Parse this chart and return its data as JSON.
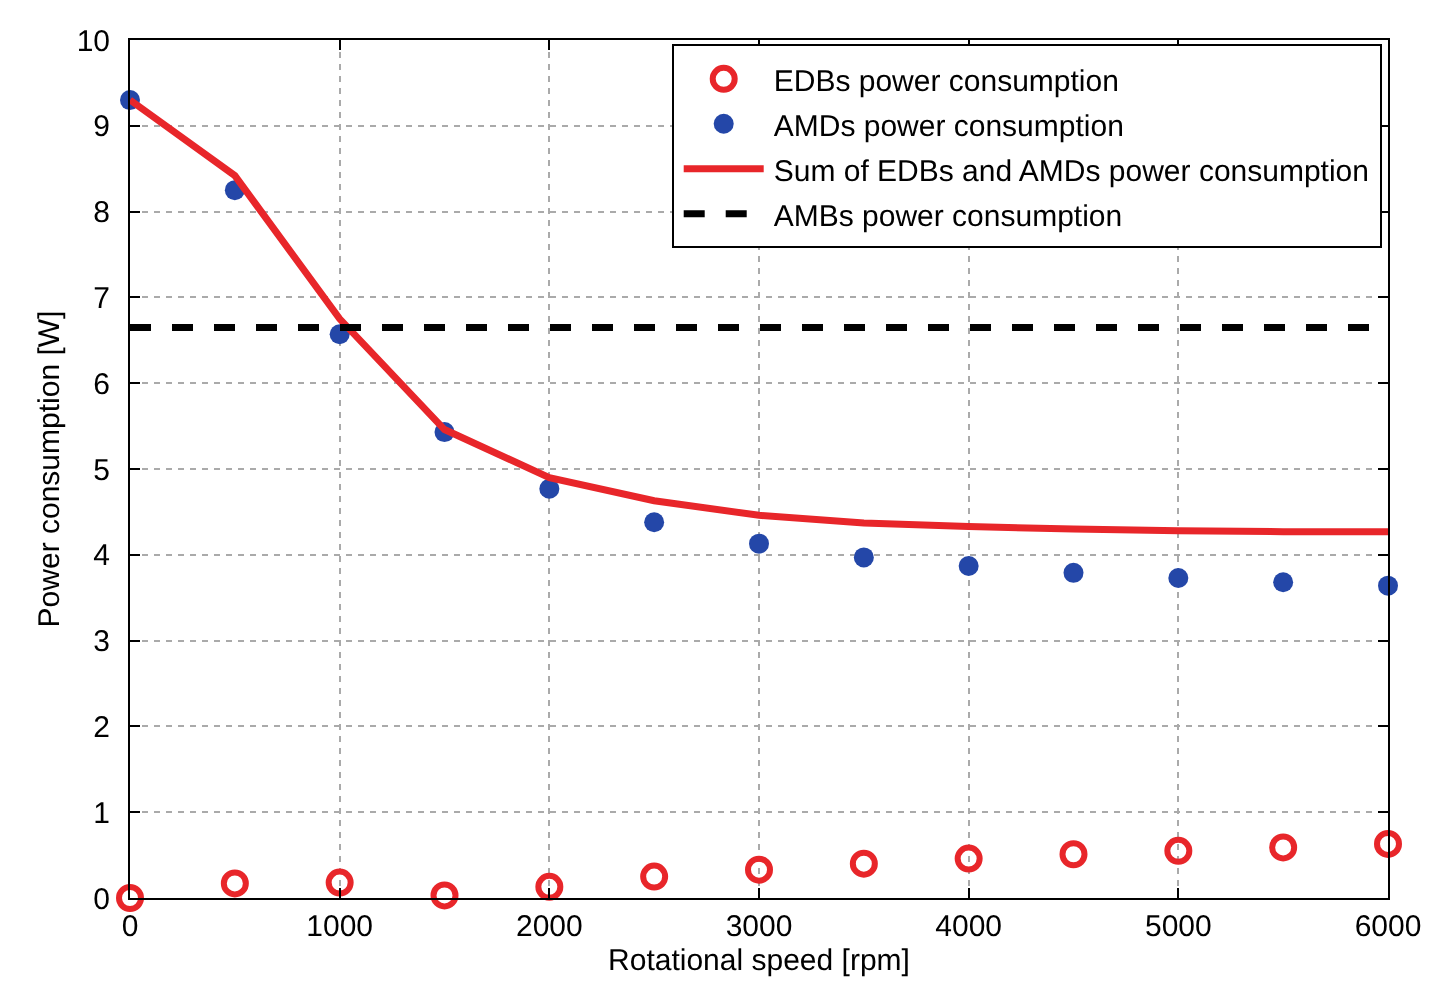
{
  "chart_data": {
    "type": "scatter",
    "xlabel": "Rotational speed [rpm]",
    "ylabel": "Power consumption [W]",
    "x": [
      0,
      500,
      1000,
      1500,
      2000,
      2500,
      3000,
      3500,
      4000,
      4500,
      5000,
      5500,
      6000
    ],
    "series": [
      {
        "name": "EDBs power consumption",
        "color": "#e8262a",
        "marker": "circle-open",
        "values": [
          0,
          0.17,
          0.18,
          0.03,
          0.13,
          0.25,
          0.33,
          0.4,
          0.46,
          0.51,
          0.55,
          0.59,
          0.63
        ]
      },
      {
        "name": "AMDs power consumption",
        "color": "#2447a8",
        "marker": "circle",
        "values": [
          9.3,
          8.25,
          6.57,
          5.43,
          4.77,
          4.38,
          4.13,
          3.97,
          3.87,
          3.79,
          3.73,
          3.68,
          3.64
        ]
      },
      {
        "name": "Sum of EDBs and AMDs power consumption",
        "color": "#e8262a",
        "type": "line",
        "marker": "none",
        "line_style": "solid",
        "values": [
          9.3,
          8.42,
          6.75,
          5.46,
          4.9,
          4.63,
          4.46,
          4.37,
          4.33,
          4.3,
          4.28,
          4.27,
          4.27
        ]
      },
      {
        "name": "AMBs power consumption",
        "color": "#000000",
        "type": "line",
        "marker": "none",
        "line_style": "dashed",
        "values": [
          6.65,
          6.65,
          6.65,
          6.65,
          6.65,
          6.65,
          6.65,
          6.65,
          6.65,
          6.65,
          6.65,
          6.65,
          6.65
        ]
      }
    ],
    "xlim": [
      0,
      6000
    ],
    "xticks": [
      0,
      1000,
      2000,
      3000,
      4000,
      5000,
      6000
    ],
    "ylim": [
      0,
      10
    ],
    "yticks": [
      0,
      1,
      2,
      3,
      4,
      5,
      6,
      7,
      8,
      9,
      10
    ],
    "grid": true,
    "legend": "top right"
  }
}
